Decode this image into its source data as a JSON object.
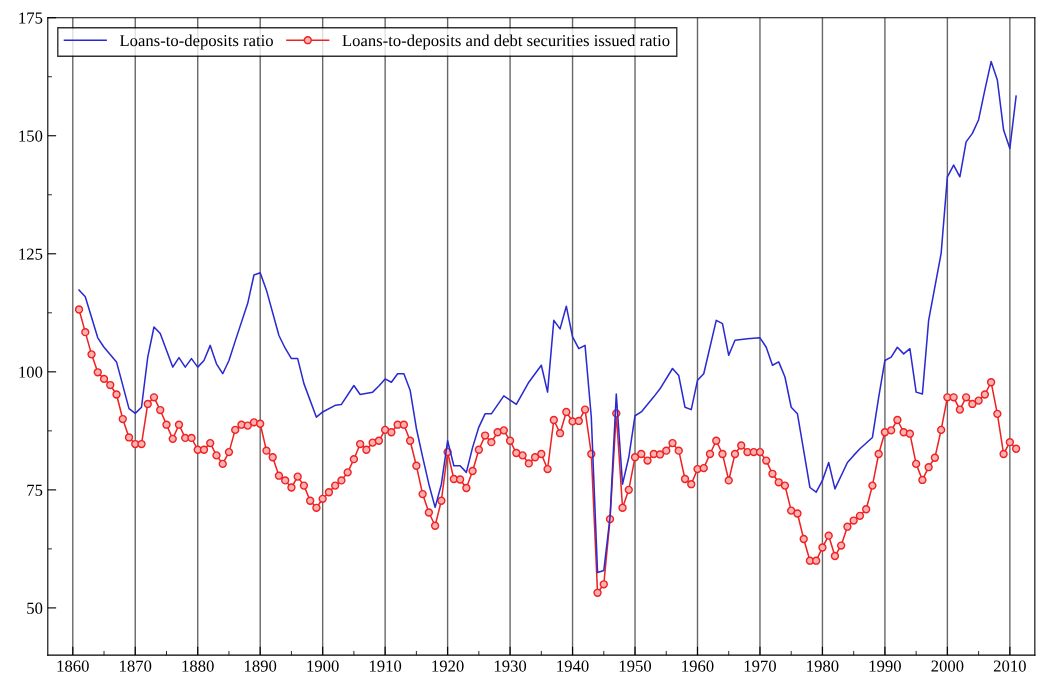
{
  "chart_data": {
    "type": "line",
    "xlim": [
      1856,
      2014
    ],
    "xticks": [
      1860,
      1870,
      1880,
      1890,
      1900,
      1910,
      1920,
      1930,
      1940,
      1950,
      1960,
      1970,
      1980,
      1990,
      2000,
      2010
    ],
    "ylim": [
      40,
      175
    ],
    "yticks": [
      50,
      75,
      100,
      125,
      150,
      175
    ],
    "grid": "x",
    "legend": "top left",
    "series": [
      {
        "name": "Loans-to-deposits ratio",
        "color": "#2a2ad0",
        "marker": "none",
        "x": [
          1861,
          1862,
          1864,
          1865,
          1867,
          1869,
          1870,
          1871,
          1872,
          1873,
          1874,
          1876,
          1877,
          1878,
          1879,
          1880,
          1881,
          1882,
          1883,
          1884,
          1885,
          1886,
          1888,
          1889,
          1890,
          1891,
          1893,
          1894,
          1895,
          1896,
          1897,
          1899,
          1900,
          1902,
          1903,
          1905,
          1906,
          1908,
          1909,
          1910,
          1911,
          1912,
          1913,
          1914,
          1915,
          1916,
          1917,
          1918,
          1919,
          1920,
          1921,
          1922,
          1923,
          1924,
          1925,
          1926,
          1927,
          1929,
          1931,
          1933,
          1935,
          1936,
          1937,
          1938,
          1939,
          1940,
          1941,
          1942,
          1943,
          1944,
          1945,
          1946,
          1947,
          1948,
          1949,
          1950,
          1951,
          1953,
          1954,
          1956,
          1957,
          1958,
          1959,
          1960,
          1961,
          1963,
          1964,
          1965,
          1966,
          1968,
          1970,
          1971,
          1972,
          1973,
          1974,
          1975,
          1976,
          1977,
          1978,
          1979,
          1980,
          1981,
          1982,
          1984,
          1985,
          1986,
          1988,
          1989,
          1990,
          1991,
          1992,
          1993,
          1994,
          1995,
          1996,
          1997,
          1999,
          2000,
          2001,
          2002,
          2003,
          2004,
          2005,
          2006,
          2007,
          2008,
          2009,
          2010,
          2011
        ],
        "values": [
          117.3,
          115.9,
          107.2,
          105.2,
          102.1,
          92.2,
          91.2,
          92.5,
          103.1,
          109.5,
          108.1,
          101.0,
          103.0,
          101.0,
          102.8,
          101.0,
          102.4,
          105.6,
          101.7,
          99.6,
          102.4,
          106.5,
          114.5,
          120.5,
          121.0,
          117.3,
          107.7,
          105.0,
          102.8,
          102.8,
          97.5,
          90.4,
          91.5,
          92.9,
          93.1,
          97.1,
          95.2,
          95.7,
          97.0,
          98.5,
          97.8,
          99.6,
          99.6,
          96.1,
          88.0,
          82.0,
          76.2,
          71.3,
          76.2,
          85.4,
          80.1,
          80.1,
          78.7,
          84.0,
          88.3,
          91.1,
          91.1,
          94.9,
          93.1,
          97.8,
          101.4,
          95.7,
          110.9,
          109.1,
          113.9,
          107.4,
          104.9,
          105.6,
          90.4,
          57.5,
          57.9,
          69.2,
          95.3,
          76.2,
          81.9,
          90.7,
          91.5,
          94.7,
          96.4,
          100.7,
          99.2,
          92.5,
          92.0,
          98.2,
          99.6,
          110.9,
          110.2,
          103.5,
          106.7,
          107.0,
          107.2,
          105.2,
          101.4,
          102.1,
          98.9,
          92.5,
          91.1,
          83.3,
          75.5,
          74.5,
          77.0,
          80.8,
          75.2,
          80.8,
          82.3,
          83.7,
          86.1,
          94.6,
          102.4,
          103.1,
          105.2,
          103.8,
          104.9,
          95.7,
          95.3,
          110.9,
          125.1,
          141.3,
          143.8,
          141.3,
          148.7,
          150.5,
          153.4,
          159.7,
          165.7,
          161.8,
          151.2,
          147.3,
          158.4
        ]
      },
      {
        "name": "Loans-to-deposits and debt securities issued ratio",
        "color": "#ee2222",
        "marker": "circle",
        "x": [
          1861,
          1862,
          1863,
          1864,
          1865,
          1866,
          1867,
          1868,
          1869,
          1870,
          1871,
          1872,
          1873,
          1874,
          1875,
          1876,
          1877,
          1878,
          1879,
          1880,
          1881,
          1882,
          1883,
          1884,
          1885,
          1886,
          1887,
          1888,
          1889,
          1890,
          1891,
          1892,
          1893,
          1894,
          1895,
          1896,
          1897,
          1898,
          1899,
          1900,
          1901,
          1902,
          1903,
          1904,
          1905,
          1906,
          1907,
          1908,
          1909,
          1910,
          1911,
          1912,
          1913,
          1914,
          1915,
          1916,
          1917,
          1918,
          1919,
          1920,
          1921,
          1922,
          1923,
          1924,
          1925,
          1926,
          1927,
          1928,
          1929,
          1930,
          1931,
          1932,
          1933,
          1934,
          1935,
          1936,
          1937,
          1938,
          1939,
          1940,
          1941,
          1942,
          1943,
          1944,
          1945,
          1946,
          1947,
          1948,
          1949,
          1950,
          1951,
          1952,
          1953,
          1954,
          1955,
          1956,
          1957,
          1958,
          1959,
          1960,
          1961,
          1962,
          1963,
          1964,
          1965,
          1966,
          1967,
          1968,
          1969,
          1970,
          1971,
          1972,
          1973,
          1974,
          1975,
          1976,
          1977,
          1978,
          1979,
          1980,
          1981,
          1982,
          1983,
          1984,
          1985,
          1986,
          1987,
          1988,
          1989,
          1990,
          1991,
          1992,
          1993,
          1994,
          1995,
          1996,
          1997,
          1998,
          1999,
          2000,
          2001,
          2002,
          2003,
          2004,
          2005,
          2006,
          2007,
          2008,
          2009,
          2010,
          2011
        ],
        "values": [
          113.2,
          108.4,
          103.7,
          99.9,
          98.5,
          97.2,
          95.2,
          90.0,
          86.1,
          84.7,
          84.7,
          93.2,
          94.6,
          91.9,
          88.8,
          85.8,
          88.8,
          86.0,
          86.0,
          83.5,
          83.5,
          84.9,
          82.3,
          80.5,
          83.0,
          87.7,
          88.8,
          88.6,
          89.3,
          89.0,
          83.3,
          81.9,
          78.0,
          77.0,
          75.5,
          77.8,
          75.9,
          72.7,
          71.2,
          73.1,
          74.5,
          75.9,
          77.0,
          78.7,
          81.5,
          84.7,
          83.5,
          85.0,
          85.4,
          87.7,
          87.2,
          88.8,
          88.8,
          85.4,
          80.1,
          74.1,
          70.2,
          67.4,
          72.7,
          83.0,
          77.3,
          77.2,
          75.4,
          79.0,
          83.5,
          86.5,
          85.1,
          87.2,
          87.6,
          85.4,
          82.8,
          82.3,
          80.6,
          81.9,
          82.6,
          79.4,
          89.8,
          87.0,
          91.5,
          89.5,
          89.6,
          92.0,
          82.6,
          53.2,
          55.0,
          68.8,
          91.2,
          71.2,
          75.0,
          81.9,
          82.6,
          81.2,
          82.6,
          82.5,
          83.3,
          84.9,
          83.3,
          77.3,
          76.2,
          79.4,
          79.6,
          82.6,
          85.4,
          82.6,
          77.0,
          82.6,
          84.4,
          83.0,
          83.0,
          83.0,
          81.2,
          78.4,
          76.6,
          75.9,
          70.6,
          70.0,
          64.6,
          60.0,
          60.0,
          62.8,
          65.3,
          61.0,
          63.2,
          67.2,
          68.5,
          69.5,
          70.9,
          75.9,
          82.6,
          87.2,
          87.6,
          89.8,
          87.2,
          86.9,
          80.5,
          77.1,
          79.8,
          81.8,
          87.7,
          94.6,
          94.6,
          92.0,
          94.6,
          93.2,
          93.9,
          95.2,
          97.8,
          91.1,
          82.6,
          85.1,
          83.7
        ]
      }
    ]
  }
}
